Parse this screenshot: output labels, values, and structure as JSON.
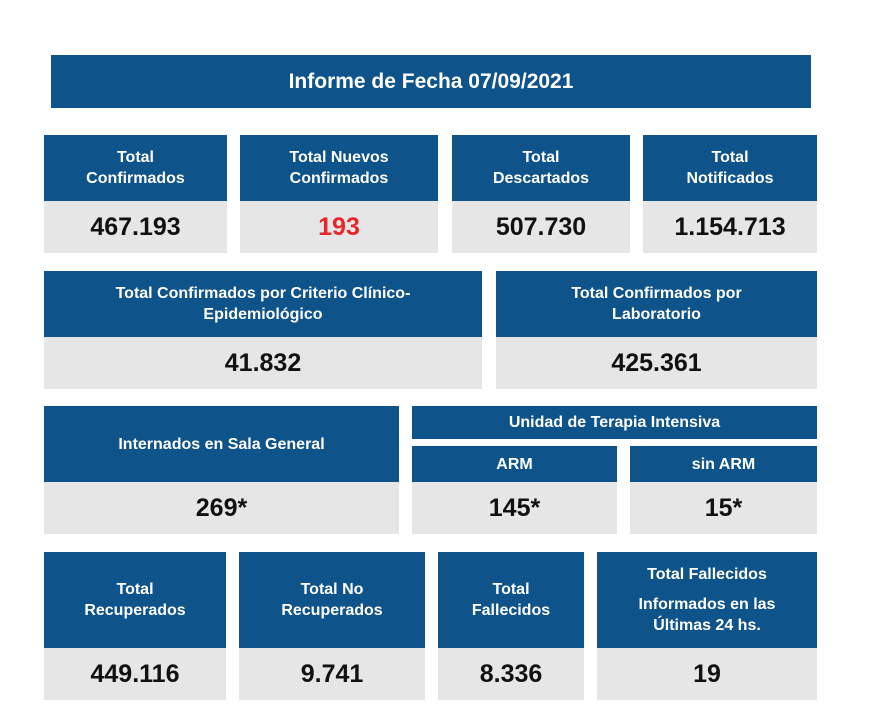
{
  "report": {
    "title": "Informe de Fecha 07/09/2021"
  },
  "row1": [
    {
      "label": "Total\nConfirmados",
      "value": "467.193"
    },
    {
      "label": "Total Nuevos\nConfirmados",
      "value": "193"
    },
    {
      "label": "Total\nDescartados",
      "value": "507.730"
    },
    {
      "label": "Total\nNotificados",
      "value": "1.154.713"
    }
  ],
  "row2": [
    {
      "label": "Total Confirmados por Criterio Clínico-\nEpidemiológico",
      "value": "41.832"
    },
    {
      "label": "Total Confirmados por\nLaboratorio",
      "value": "425.361"
    }
  ],
  "row3": {
    "sala_label": "Internados en Sala General",
    "sala_value": "269*",
    "uti_label": "Unidad de Terapia Intensiva",
    "arm_label": "ARM",
    "arm_value": "145*",
    "sin_arm_label": "sin ARM",
    "sin_arm_value": "15*"
  },
  "row4": [
    {
      "label": "Total\nRecuperados",
      "value": "449.116"
    },
    {
      "label": "Total No\nRecuperados",
      "value": "9.741"
    },
    {
      "label": "Total\nFallecidos",
      "value": "8.336"
    }
  ],
  "fallecidos_24": {
    "line1": "Total Fallecidos",
    "line2": "Informados en las\nÚltimas 24 hs.",
    "value": "19"
  },
  "colors": {
    "header_blue": "#0e5389",
    "value_gray": "#e6e6e6",
    "highlight_red": "#e8262a"
  }
}
